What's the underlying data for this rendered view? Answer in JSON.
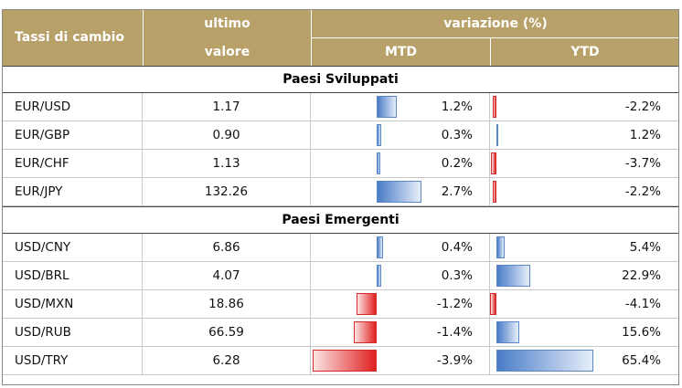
{
  "header": {
    "col_pair": "Tassi di cambio",
    "col_value_line1": "ultimo",
    "col_value_line2": "valore",
    "col_variation": "variazione (%)",
    "col_mtd": "MTD",
    "col_ytd": "YTD"
  },
  "colors": {
    "header_bg": "#b8a069",
    "positive_bar": "#4a7cc7",
    "negative_bar": "#e02020"
  },
  "sections": [
    {
      "title": "Paesi Sviluppati",
      "rows": [
        {
          "pair": "EUR/USD",
          "value": "1.17",
          "mtd": 1.2,
          "mtd_label": "1.2%",
          "ytd": -2.2,
          "ytd_label": "-2.2%"
        },
        {
          "pair": "EUR/GBP",
          "value": "0.90",
          "mtd": 0.3,
          "mtd_label": "0.3%",
          "ytd": 1.2,
          "ytd_label": "1.2%"
        },
        {
          "pair": "EUR/CHF",
          "value": "1.13",
          "mtd": 0.2,
          "mtd_label": "0.2%",
          "ytd": -3.7,
          "ytd_label": "-3.7%"
        },
        {
          "pair": "EUR/JPY",
          "value": "132.26",
          "mtd": 2.7,
          "mtd_label": "2.7%",
          "ytd": -2.2,
          "ytd_label": "-2.2%"
        }
      ]
    },
    {
      "title": "Paesi Emergenti",
      "rows": [
        {
          "pair": "USD/CNY",
          "value": "6.86",
          "mtd": 0.4,
          "mtd_label": "0.4%",
          "ytd": 5.4,
          "ytd_label": "5.4%"
        },
        {
          "pair": "USD/BRL",
          "value": "4.07",
          "mtd": 0.3,
          "mtd_label": "0.3%",
          "ytd": 22.9,
          "ytd_label": "22.9%"
        },
        {
          "pair": "USD/MXN",
          "value": "18.86",
          "mtd": -1.2,
          "mtd_label": "-1.2%",
          "ytd": -4.1,
          "ytd_label": "-4.1%"
        },
        {
          "pair": "USD/RUB",
          "value": "66.59",
          "mtd": -1.4,
          "mtd_label": "-1.4%",
          "ytd": 15.6,
          "ytd_label": "15.6%"
        },
        {
          "pair": "USD/TRY",
          "value": "6.28",
          "mtd": -3.9,
          "mtd_label": "-3.9%",
          "ytd": 65.4,
          "ytd_label": "65.4%"
        }
      ]
    }
  ]
}
